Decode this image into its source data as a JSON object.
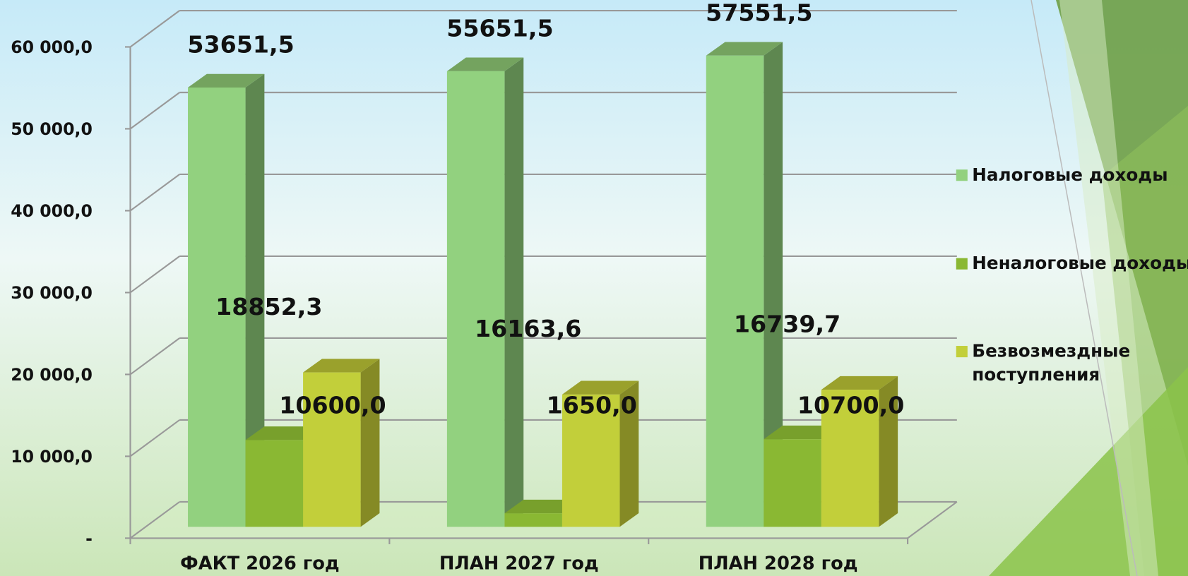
{
  "chart_data": {
    "type": "bar3d",
    "categories": [
      "ФАКТ 2026 год",
      "ПЛАН 2027 год",
      "ПЛАН 2028 год"
    ],
    "series": [
      {
        "name": "Налоговые доходы",
        "color": "#92d17f",
        "values": [
          53651.5,
          55651.5,
          57551.5
        ],
        "value_labels": [
          "53651,5",
          "55651,5",
          "57551,5"
        ]
      },
      {
        "name": "Неналоговые доходы",
        "color": "#8ab833",
        "values": [
          10600.0,
          1650.0,
          10700.0
        ],
        "value_labels": [
          "10600,0",
          "1650,0",
          "10700,0"
        ]
      },
      {
        "name": "Безвозмездные поступления",
        "color": "#c2cf3a",
        "values": [
          18852.3,
          16163.6,
          16739.7
        ],
        "value_labels": [
          "18852,3",
          "16163,6",
          "16739,7"
        ]
      }
    ],
    "ylim": [
      0,
      60000
    ],
    "yticks": [
      {
        "value": 0,
        "label": "-"
      },
      {
        "value": 10000,
        "label": "10 000,0"
      },
      {
        "value": 20000,
        "label": "20 000,0"
      },
      {
        "value": 30000,
        "label": "30 000,0"
      },
      {
        "value": 40000,
        "label": "40 000,0"
      },
      {
        "value": 50000,
        "label": "50 000,0"
      },
      {
        "value": 60000,
        "label": "60 000,0"
      }
    ],
    "grid": true,
    "legend": "right"
  }
}
